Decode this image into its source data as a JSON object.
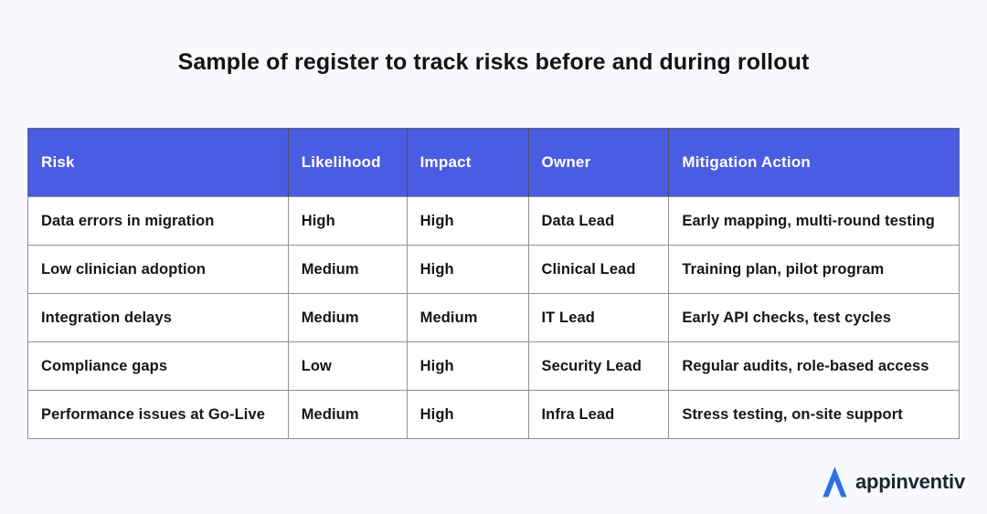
{
  "page": {
    "background": "#f7f9fc",
    "title": "Sample of register to track risks before and during rollout",
    "title_color": "#141414"
  },
  "table": {
    "header_bg": "#4a5ce2",
    "header_text_color": "#ffffff",
    "cell_text_color": "#161616",
    "columns": [
      "Risk",
      "Likelihood",
      "Impact",
      "Owner",
      "Mitigation Action"
    ],
    "rows": [
      [
        "Data errors in migration",
        "High",
        "High",
        "Data Lead",
        "Early mapping, multi-round testing"
      ],
      [
        "Low clinician adoption",
        "Medium",
        "High",
        "Clinical Lead",
        "Training plan, pilot program"
      ],
      [
        "Integration delays",
        "Medium",
        "Medium",
        "IT Lead",
        "Early API checks, test cycles"
      ],
      [
        "Compliance gaps",
        "Low",
        "High",
        "Security Lead",
        "Regular audits, role-based access"
      ],
      [
        "Performance issues at Go-Live",
        "Medium",
        "High",
        "Infra Lead",
        "Stress testing, on-site support"
      ]
    ]
  },
  "footer": {
    "logo_text": "appinventiv",
    "logo_icon": "appinventiv-a-icon",
    "logo_icon_color": "#2e6fe4",
    "logo_text_color": "#20242e"
  }
}
